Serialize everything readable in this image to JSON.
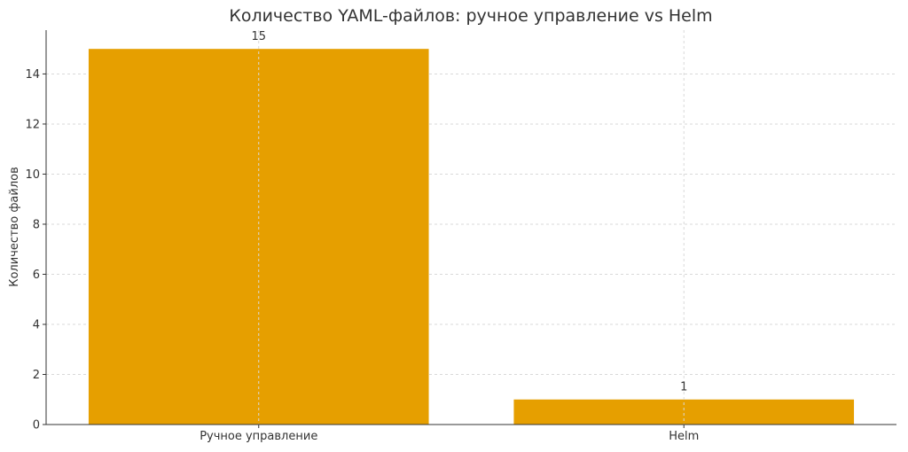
{
  "chart_data": {
    "type": "bar",
    "title": "Количество YAML-файлов: ручное управление vs Helm",
    "xlabel": "",
    "ylabel": "Количество файлов",
    "categories": [
      "Ручное управление",
      "Helm"
    ],
    "values": [
      15,
      1
    ],
    "data_labels": [
      "15",
      "1"
    ],
    "ylim": [
      0,
      15.75
    ],
    "yticks": [
      0,
      2,
      4,
      6,
      8,
      10,
      12,
      14
    ],
    "grid": true,
    "bar_color": "#E69F00"
  }
}
